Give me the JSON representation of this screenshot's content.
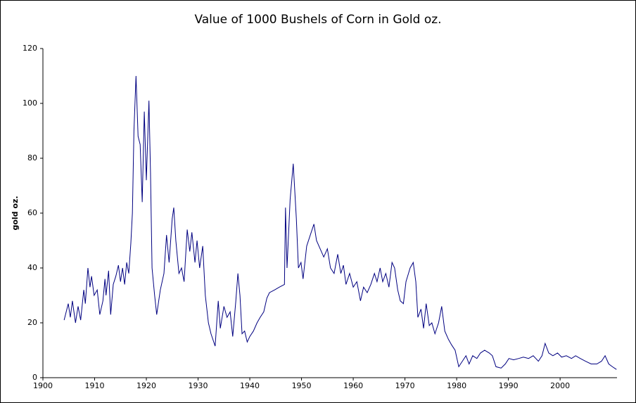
{
  "chart_data": {
    "type": "line",
    "title": "Value of 1000 Bushels of Corn in Gold oz.",
    "y_label": "gold oz.",
    "x": [
      1904.1,
      1904.9,
      1905.3,
      1905.7,
      1906.3,
      1906.8,
      1907.3,
      1907.9,
      1908.2,
      1908.7,
      1909.1,
      1909.4,
      1909.9,
      1910.5,
      1911.0,
      1911.6,
      1912.0,
      1912.2,
      1912.7,
      1913.1,
      1913.6,
      1914.1,
      1914.6,
      1915.0,
      1915.4,
      1915.8,
      1916.2,
      1916.6,
      1917.0,
      1917.3,
      1917.6,
      1918.0,
      1918.4,
      1918.8,
      1919.2,
      1919.6,
      1920.0,
      1920.5,
      1920.8,
      1921.1,
      1921.6,
      1922.0,
      1922.7,
      1923.4,
      1923.9,
      1924.4,
      1925.0,
      1925.3,
      1925.7,
      1926.3,
      1926.8,
      1927.3,
      1927.9,
      1928.4,
      1928.8,
      1929.4,
      1929.8,
      1930.3,
      1930.9,
      1931.4,
      1932.0,
      1932.5,
      1933.3,
      1933.9,
      1934.3,
      1935.0,
      1935.6,
      1936.2,
      1936.7,
      1937.3,
      1937.7,
      1938.1,
      1938.5,
      1939.0,
      1939.5,
      1940.0,
      1940.7,
      1941.4,
      1942.0,
      1942.7,
      1943.3,
      1943.8,
      1944.8,
      1945.7,
      1946.7,
      1946.9,
      1947.2,
      1947.8,
      1948.4,
      1949.0,
      1949.4,
      1949.9,
      1950.3,
      1951.0,
      1951.7,
      1952.4,
      1952.9,
      1953.6,
      1954.3,
      1955.0,
      1955.6,
      1956.3,
      1957.0,
      1957.6,
      1958.1,
      1958.6,
      1959.3,
      1960.0,
      1960.7,
      1961.4,
      1962.0,
      1962.7,
      1963.4,
      1964.1,
      1964.6,
      1965.2,
      1965.7,
      1966.3,
      1966.9,
      1967.5,
      1968.0,
      1968.6,
      1969.1,
      1969.7,
      1970.2,
      1971.0,
      1971.6,
      1972.1,
      1972.5,
      1973.1,
      1973.6,
      1974.1,
      1974.7,
      1975.2,
      1975.8,
      1976.5,
      1977.1,
      1977.7,
      1978.4,
      1979.0,
      1979.7,
      1980.4,
      1981.1,
      1981.8,
      1982.4,
      1983.1,
      1983.9,
      1984.6,
      1985.4,
      1986.3,
      1986.9,
      1987.6,
      1988.6,
      1989.4,
      1990.1,
      1991.0,
      1992.0,
      1992.9,
      1993.9,
      1994.8,
      1995.8,
      1996.5,
      1997.1,
      1997.8,
      1998.6,
      1999.5,
      2000.3,
      2001.2,
      2002.2,
      2003.0,
      2003.9,
      2004.9,
      2006.0,
      2007.1,
      2008.0,
      2008.7,
      2009.4,
      2010.1,
      2010.9
    ],
    "series": [
      {
        "name": "gold oz.",
        "color": "#000080",
        "values": [
          21,
          27,
          22,
          28,
          20,
          26,
          21,
          32,
          27,
          40,
          33,
          37,
          30,
          32,
          23,
          28,
          36,
          30,
          39,
          23,
          34,
          37,
          41,
          35,
          40,
          34,
          42,
          38,
          49,
          60,
          90,
          110,
          88,
          85,
          64,
          97,
          72,
          101,
          75,
          40,
          30,
          23,
          32,
          38,
          52,
          42,
          58,
          62,
          50,
          38,
          40,
          35,
          54,
          46,
          53,
          42,
          50,
          40,
          48,
          30,
          20,
          16,
          11.5,
          28,
          18,
          26,
          22,
          24,
          15,
          28,
          38,
          30,
          16,
          17,
          13,
          15,
          17,
          20,
          22,
          24,
          29,
          31,
          32,
          33,
          34,
          62,
          40,
          65,
          78,
          58,
          40,
          42,
          36,
          48,
          52,
          56,
          50,
          47,
          44,
          47,
          40,
          38,
          45,
          38,
          41,
          34,
          38,
          33,
          35,
          28,
          33,
          31,
          34,
          38,
          35,
          40,
          35,
          38,
          33,
          42,
          40,
          32,
          28,
          27,
          35,
          40,
          42,
          35,
          22,
          25,
          18,
          27,
          19,
          20,
          16,
          20,
          26,
          17,
          14,
          12,
          10,
          4,
          6,
          8,
          5,
          8,
          7,
          9,
          10,
          9,
          8,
          4,
          3.5,
          5,
          7,
          6.5,
          7,
          7.5,
          7,
          8,
          6,
          8,
          12.5,
          9,
          8,
          9,
          7.5,
          8,
          7,
          8,
          7,
          6,
          5,
          5,
          6,
          8,
          5,
          4,
          3
        ]
      }
    ],
    "xlim": [
      1900,
      2011
    ],
    "xticks": [
      1900,
      1910,
      1920,
      1930,
      1940,
      1950,
      1960,
      1970,
      1980,
      1990,
      2000
    ],
    "ylim": [
      0,
      120
    ],
    "yticks": [
      0,
      20,
      40,
      60,
      80,
      100,
      120
    ],
    "grid": false
  }
}
